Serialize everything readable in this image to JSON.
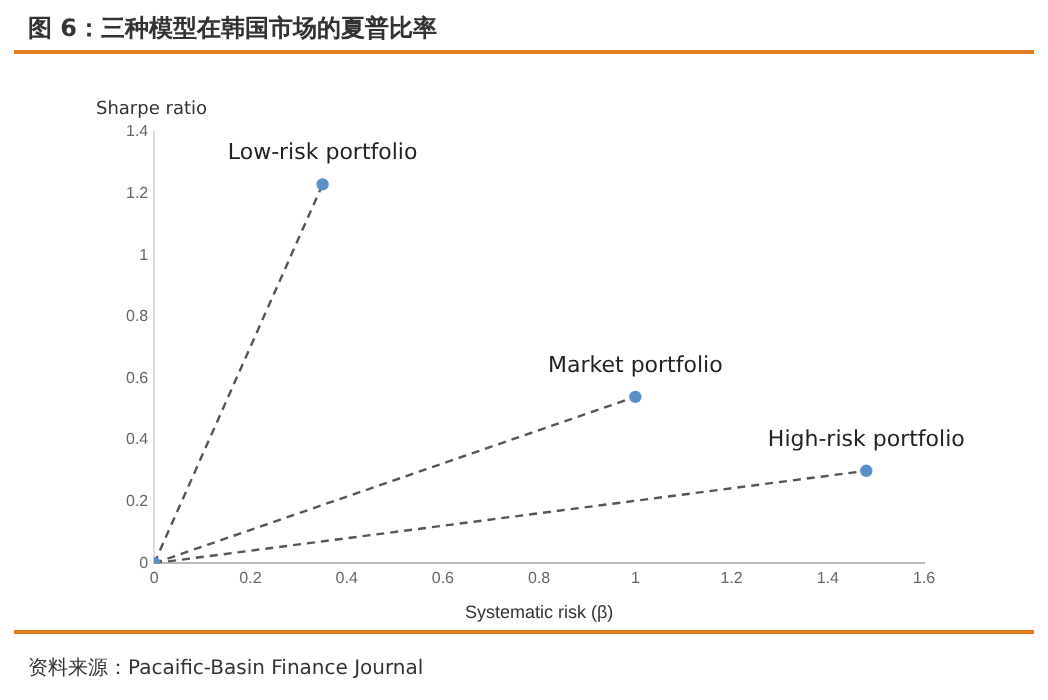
{
  "chart_data": {
    "type": "line",
    "title": "图 6：三种模型在韩国市场的夏普比率",
    "xlabel": "Systematic risk (β)",
    "ylabel": "Sharpe ratio",
    "annotations": [
      "资料来源：Pacaific-Basin Finance Journal"
    ],
    "series": [
      {
        "name": "Low-risk portfolio",
        "color": "#5b8fc7",
        "x": [
          0,
          0.35
        ],
        "values": [
          0,
          1.23
        ]
      },
      {
        "name": "Market portfolio",
        "color": "#5b8fc7",
        "x": [
          0,
          1.0
        ],
        "values": [
          0,
          0.54
        ]
      },
      {
        "name": "High-risk portfolio",
        "color": "#5b8fc7",
        "x": [
          0,
          1.48
        ],
        "values": [
          0,
          0.3
        ]
      }
    ],
    "xlim": [
      0,
      1.6
    ],
    "xticks": [
      0,
      0.2,
      0.4,
      0.6,
      0.8,
      1,
      1.2,
      1.4,
      1.6
    ],
    "ylim": [
      0,
      1.4
    ],
    "yticks": [
      0,
      0.2,
      0.4,
      0.6,
      0.8,
      1,
      1.2,
      1.4
    ],
    "grid": false,
    "legend": false,
    "marker": "circle",
    "line_style": "dashed"
  }
}
